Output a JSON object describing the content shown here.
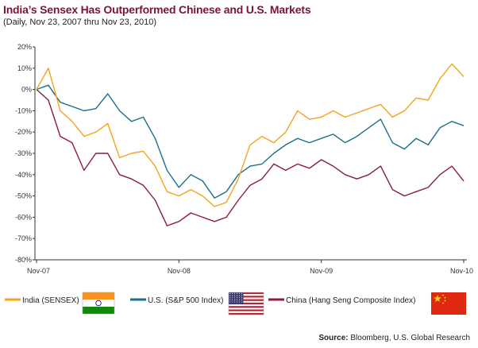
{
  "header": {
    "title": "India’s Sensex Has Outperformed Chinese and U.S. Markets",
    "subtitle": "(Daily, Nov 23, 2007 thru Nov 23, 2010)"
  },
  "source": {
    "label": "Source:",
    "text": "Bloomberg, U.S. Global Research"
  },
  "chart_data": {
    "type": "line",
    "title": "India’s Sensex Has Outperformed Chinese and U.S. Markets",
    "subtitle": "(Daily, Nov 23, 2007 thru Nov 23, 2010)",
    "x_ticks": [
      "Nov-07",
      "Nov-08",
      "Nov-09",
      "Nov-10"
    ],
    "y_ticks": [
      "20%",
      "10%",
      "0%",
      "-10%",
      "-20%",
      "-30%",
      "-40%",
      "-50%",
      "-60%",
      "-70%",
      "-80%"
    ],
    "ylim": [
      -80,
      20
    ],
    "xlim": [
      "2007-11-23",
      "2010-11-23"
    ],
    "grid": false,
    "legend_position": "bottom",
    "x": [
      "2007-11",
      "2007-12",
      "2008-01",
      "2008-02",
      "2008-03",
      "2008-04",
      "2008-05",
      "2008-06",
      "2008-07",
      "2008-08",
      "2008-09",
      "2008-10",
      "2008-11",
      "2008-12",
      "2009-01",
      "2009-02",
      "2009-03",
      "2009-04",
      "2009-05",
      "2009-06",
      "2009-07",
      "2009-08",
      "2009-09",
      "2009-10",
      "2009-11",
      "2009-12",
      "2010-01",
      "2010-02",
      "2010-03",
      "2010-04",
      "2010-05",
      "2010-06",
      "2010-07",
      "2010-08",
      "2010-09",
      "2010-10",
      "2010-11"
    ],
    "series": [
      {
        "name": "India (SENSEX)",
        "color": "#f7a21b",
        "flag": "india-flag-icon",
        "values": [
          0,
          10,
          -10,
          -15,
          -22,
          -20,
          -16,
          -32,
          -30,
          -29,
          -36,
          -48,
          -50,
          -47,
          -50,
          -55,
          -53,
          -42,
          -26,
          -22,
          -25,
          -20,
          -10,
          -14,
          -13,
          -10,
          -13,
          -11,
          -9,
          -7,
          -13,
          -10,
          -4,
          -5,
          5,
          12,
          6
        ]
      },
      {
        "name": "U.S. (S&P 500 Index)",
        "color": "#1b6f8c",
        "flag": "usa-flag-icon",
        "values": [
          0,
          2,
          -6,
          -8,
          -10,
          -9,
          -2,
          -10,
          -15,
          -13,
          -23,
          -38,
          -46,
          -40,
          -43,
          -51,
          -48,
          -40,
          -36,
          -35,
          -30,
          -26,
          -23,
          -25,
          -23,
          -21,
          -25,
          -22,
          -18,
          -14,
          -25,
          -28,
          -23,
          -26,
          -18,
          -15,
          -17
        ]
      },
      {
        "name": "China (Hang Seng Composite Index)",
        "color": "#8b1a45",
        "flag": "china-flag-icon",
        "values": [
          0,
          -5,
          -22,
          -25,
          -38,
          -30,
          -30,
          -40,
          -42,
          -45,
          -52,
          -64,
          -62,
          -58,
          -60,
          -62,
          -60,
          -52,
          -45,
          -42,
          -35,
          -38,
          -35,
          -37,
          -33,
          -36,
          -40,
          -42,
          -40,
          -36,
          -47,
          -50,
          -48,
          -46,
          -40,
          -36,
          -43
        ]
      }
    ]
  }
}
